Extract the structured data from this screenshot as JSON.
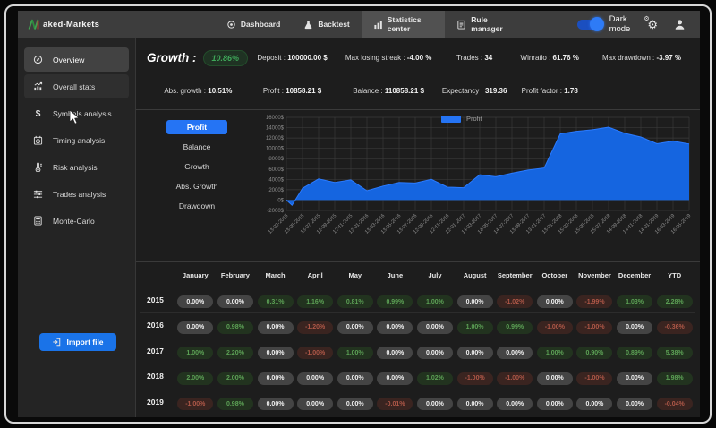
{
  "topbar": {
    "brand_text": "aked-Markets",
    "nav": [
      {
        "label": "Dashboard",
        "icon": "dashboard",
        "active": false
      },
      {
        "label": "Backtest",
        "icon": "backtest",
        "active": false
      },
      {
        "label": "Statistics center",
        "icon": "statistics",
        "active": true
      },
      {
        "label": "Rule manager",
        "icon": "rule",
        "active": false
      }
    ],
    "dark_mode_label": "Dark mode",
    "dark_mode_on": true
  },
  "sidebar": {
    "items": [
      {
        "label": "Overview",
        "icon": "compass",
        "state": "active"
      },
      {
        "label": "Overall stats",
        "icon": "stats",
        "state": "hover"
      },
      {
        "label": "Symbols analysis",
        "icon": "dollar",
        "state": ""
      },
      {
        "label": "Timing analysis",
        "icon": "calendar",
        "state": ""
      },
      {
        "label": "Risk analysis",
        "icon": "thermometer",
        "state": ""
      },
      {
        "label": "Trades analysis",
        "icon": "sliders",
        "state": ""
      },
      {
        "label": "Monte-Carlo",
        "icon": "calculator",
        "state": ""
      }
    ],
    "import_button_label": "Import file"
  },
  "stats": {
    "growth_label": "Growth :",
    "growth_value": "10.86%",
    "row1": [
      {
        "label": "Deposit :",
        "value": "100000.00 $"
      },
      {
        "label": "Max losing streak :",
        "value": "-4.00 %"
      },
      {
        "label": "Trades :",
        "value": "34"
      },
      {
        "label": "Winratio :",
        "value": "61.76 %"
      },
      {
        "label": "Max drawdown :",
        "value": "-3.97 %"
      }
    ],
    "row2": [
      {
        "label": "Abs. growth :",
        "value": "10.51%"
      },
      {
        "label": "Profit :",
        "value": "10858.21 $"
      },
      {
        "label": "Balance :",
        "value": "110858.21 $"
      },
      {
        "label": "Expectancy :",
        "value": "319.36"
      },
      {
        "label": "Profit factor :",
        "value": "1.78"
      }
    ]
  },
  "chart": {
    "buttons": [
      {
        "label": "Profit",
        "active": true
      },
      {
        "label": "Balance",
        "active": false
      },
      {
        "label": "Growth",
        "active": false
      },
      {
        "label": "Abs. Growth",
        "active": false
      },
      {
        "label": "Drawdown",
        "active": false
      }
    ],
    "legend_label": "Profit"
  },
  "chart_data": {
    "type": "area",
    "title": "Profit",
    "legend": [
      "Profit"
    ],
    "legend_position": "top",
    "grid": true,
    "series_color": "#1565e0",
    "ylim": [
      -2000,
      16000
    ],
    "ytick_labels": [
      "16000$",
      "14000$",
      "12000$",
      "10000$",
      "8000$",
      "6000$",
      "4000$",
      "2000$",
      "0$",
      "-2000$"
    ],
    "x": [
      "13-03-2015",
      "13-05-2015",
      "13-07-2015",
      "12-09-2015",
      "12-11-2015",
      "12-01-2016",
      "13-03-2016",
      "13-05-2016",
      "13-07-2016",
      "12-09-2016",
      "12-11-2016",
      "12-01-2017",
      "14-03-2017",
      "14-05-2017",
      "14-07-2017",
      "13-09-2017",
      "13-11-2017",
      "13-01-2018",
      "15-03-2018",
      "15-05-2018",
      "15-07-2018",
      "14-09-2018",
      "14-11-2018",
      "14-01-2019",
      "16-03-2019",
      "16-05-2019"
    ],
    "values": [
      0,
      2300,
      4100,
      3400,
      3900,
      1800,
      2700,
      3400,
      3300,
      4000,
      2500,
      2400,
      4900,
      4500,
      5200,
      5800,
      6200,
      12800,
      13300,
      13600,
      14100,
      12900,
      12200,
      10900,
      11400,
      10858
    ],
    "start_dip": -1000
  },
  "table": {
    "months": [
      "January",
      "February",
      "March",
      "April",
      "May",
      "June",
      "July",
      "August",
      "September",
      "October",
      "November",
      "December",
      "YTD"
    ],
    "rows": [
      {
        "year": "2015",
        "cells": [
          [
            "0.00%",
            "n"
          ],
          [
            "0.00%",
            "n"
          ],
          [
            "0.31%",
            "g"
          ],
          [
            "1.16%",
            "g"
          ],
          [
            "0.81%",
            "g"
          ],
          [
            "0.99%",
            "g"
          ],
          [
            "1.00%",
            "g"
          ],
          [
            "0.00%",
            "n"
          ],
          [
            "-1.02%",
            "r"
          ],
          [
            "0.00%",
            "n"
          ],
          [
            "-1.99%",
            "r"
          ],
          [
            "1.03%",
            "g"
          ],
          [
            "2.28%",
            "g"
          ]
        ]
      },
      {
        "year": "2016",
        "cells": [
          [
            "0.00%",
            "n"
          ],
          [
            "0.98%",
            "g"
          ],
          [
            "0.00%",
            "n"
          ],
          [
            "-1.20%",
            "r"
          ],
          [
            "0.00%",
            "n"
          ],
          [
            "0.00%",
            "n"
          ],
          [
            "0.00%",
            "n"
          ],
          [
            "1.00%",
            "g"
          ],
          [
            "0.99%",
            "g"
          ],
          [
            "-1.00%",
            "r"
          ],
          [
            "-1.00%",
            "r"
          ],
          [
            "0.00%",
            "n"
          ],
          [
            "-0.36%",
            "r"
          ]
        ]
      },
      {
        "year": "2017",
        "cells": [
          [
            "1.00%",
            "g"
          ],
          [
            "2.20%",
            "g"
          ],
          [
            "0.00%",
            "n"
          ],
          [
            "-1.00%",
            "r"
          ],
          [
            "1.00%",
            "g"
          ],
          [
            "0.00%",
            "n"
          ],
          [
            "0.00%",
            "n"
          ],
          [
            "0.00%",
            "n"
          ],
          [
            "0.00%",
            "n"
          ],
          [
            "1.00%",
            "g"
          ],
          [
            "0.90%",
            "g"
          ],
          [
            "0.89%",
            "g"
          ],
          [
            "5.38%",
            "g"
          ]
        ]
      },
      {
        "year": "2018",
        "cells": [
          [
            "2.00%",
            "g"
          ],
          [
            "2.00%",
            "g"
          ],
          [
            "0.00%",
            "n"
          ],
          [
            "0.00%",
            "n"
          ],
          [
            "0.00%",
            "n"
          ],
          [
            "0.00%",
            "n"
          ],
          [
            "1.02%",
            "g"
          ],
          [
            "-1.00%",
            "r"
          ],
          [
            "-1.00%",
            "r"
          ],
          [
            "0.00%",
            "n"
          ],
          [
            "-1.00%",
            "r"
          ],
          [
            "0.00%",
            "n"
          ],
          [
            "1.98%",
            "g"
          ]
        ]
      },
      {
        "year": "2019",
        "cells": [
          [
            "-1.00%",
            "r"
          ],
          [
            "0.98%",
            "g"
          ],
          [
            "0.00%",
            "n"
          ],
          [
            "0.00%",
            "n"
          ],
          [
            "0.00%",
            "n"
          ],
          [
            "-0.01%",
            "r"
          ],
          [
            "0.00%",
            "n"
          ],
          [
            "0.00%",
            "n"
          ],
          [
            "0.00%",
            "n"
          ],
          [
            "0.00%",
            "n"
          ],
          [
            "0.00%",
            "n"
          ],
          [
            "0.00%",
            "n"
          ],
          [
            "-0.04%",
            "r"
          ]
        ]
      }
    ]
  },
  "colors": {
    "accent_blue": "#2574f4",
    "chart_fill": "#1565e0",
    "positive_green": "#5da256",
    "negative_red": "#b05848",
    "topbar_bg": "#3d3d3d",
    "app_bg": "#1d1d1d"
  }
}
